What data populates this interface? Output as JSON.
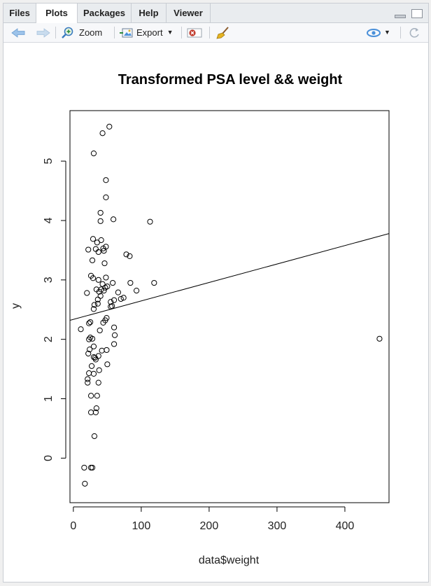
{
  "tabs": [
    {
      "label": "Files",
      "active": false
    },
    {
      "label": "Plots",
      "active": true
    },
    {
      "label": "Packages",
      "active": false
    },
    {
      "label": "Help",
      "active": false
    },
    {
      "label": "Viewer",
      "active": false
    }
  ],
  "toolbar": {
    "zoom_label": "Zoom",
    "export_label": "Export"
  },
  "colors": {
    "accent_blue": "#4a90d9",
    "remove_red": "#c0392b"
  },
  "chart_data": {
    "type": "scatter",
    "title": "Transformed PSA level && weight",
    "xlabel": "data$weight",
    "ylabel": "y",
    "xlim": [
      -5,
      465
    ],
    "ylim": [
      -0.75,
      5.85
    ],
    "xticks": [
      0,
      100,
      200,
      300,
      400
    ],
    "yticks": [
      0,
      1,
      2,
      3,
      4,
      5
    ],
    "point_style": "open-circle",
    "regression_line": {
      "x": [
        -5,
        465
      ],
      "y": [
        2.32,
        3.78
      ]
    },
    "points": [
      [
        53,
        5.58
      ],
      [
        43,
        5.47
      ],
      [
        30,
        5.13
      ],
      [
        48,
        4.68
      ],
      [
        48,
        4.39
      ],
      [
        40,
        4.13
      ],
      [
        40,
        3.99
      ],
      [
        59,
        4.02
      ],
      [
        113,
        3.98
      ],
      [
        29,
        3.69
      ],
      [
        35,
        3.63
      ],
      [
        41,
        3.67
      ],
      [
        22,
        3.51
      ],
      [
        33,
        3.52
      ],
      [
        37,
        3.47
      ],
      [
        44,
        3.53
      ],
      [
        48,
        3.56
      ],
      [
        45,
        3.49
      ],
      [
        78,
        3.43
      ],
      [
        83,
        3.4
      ],
      [
        28,
        3.33
      ],
      [
        46,
        3.28
      ],
      [
        26,
        3.07
      ],
      [
        29,
        3.03
      ],
      [
        37,
        3.0
      ],
      [
        48,
        3.04
      ],
      [
        43,
        2.93
      ],
      [
        58,
        2.95
      ],
      [
        84,
        2.95
      ],
      [
        119,
        2.95
      ],
      [
        34,
        2.84
      ],
      [
        41,
        2.84
      ],
      [
        47,
        2.87
      ],
      [
        50,
        2.89
      ],
      [
        38,
        2.8
      ],
      [
        45,
        2.82
      ],
      [
        66,
        2.79
      ],
      [
        93,
        2.82
      ],
      [
        20,
        2.78
      ],
      [
        40,
        2.73
      ],
      [
        36,
        2.67
      ],
      [
        55,
        2.63
      ],
      [
        60,
        2.66
      ],
      [
        70,
        2.68
      ],
      [
        74,
        2.7
      ],
      [
        31,
        2.58
      ],
      [
        36,
        2.6
      ],
      [
        55,
        2.55
      ],
      [
        57,
        2.56
      ],
      [
        30,
        2.51
      ],
      [
        47,
        2.32
      ],
      [
        49,
        2.36
      ],
      [
        44,
        2.28
      ],
      [
        23,
        2.27
      ],
      [
        25,
        2.29
      ],
      [
        60,
        2.2
      ],
      [
        39,
        2.15
      ],
      [
        11,
        2.17
      ],
      [
        61,
        2.07
      ],
      [
        25,
        2.03
      ],
      [
        23,
        2.0
      ],
      [
        28,
        2.01
      ],
      [
        30,
        1.88
      ],
      [
        60,
        1.92
      ],
      [
        24,
        1.83
      ],
      [
        42,
        1.81
      ],
      [
        49,
        1.82
      ],
      [
        22,
        1.76
      ],
      [
        30,
        1.7
      ],
      [
        33,
        1.66
      ],
      [
        32,
        1.69
      ],
      [
        37,
        1.72
      ],
      [
        27,
        1.55
      ],
      [
        38,
        1.48
      ],
      [
        50,
        1.58
      ],
      [
        23,
        1.43
      ],
      [
        30,
        1.42
      ],
      [
        21,
        1.33
      ],
      [
        21,
        1.27
      ],
      [
        37,
        1.27
      ],
      [
        26,
        1.05
      ],
      [
        35,
        1.05
      ],
      [
        34,
        0.84
      ],
      [
        26,
        0.77
      ],
      [
        33,
        0.77
      ],
      [
        31,
        0.37
      ],
      [
        16,
        -0.16
      ],
      [
        26,
        -0.16
      ],
      [
        28,
        -0.16
      ],
      [
        17,
        -0.43
      ],
      [
        451,
        2.01
      ]
    ]
  }
}
